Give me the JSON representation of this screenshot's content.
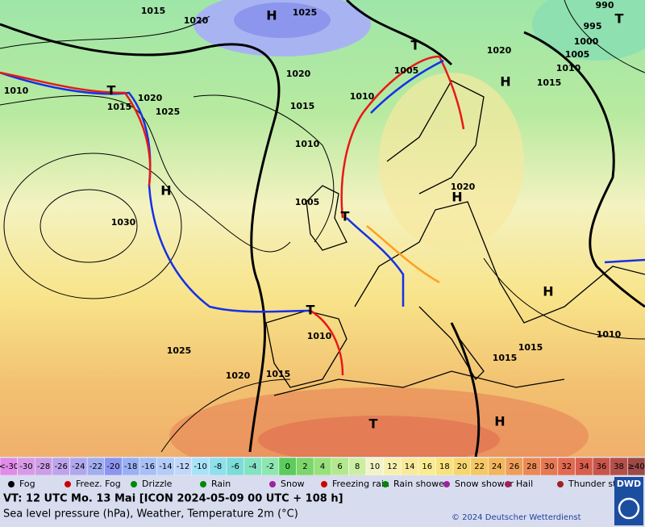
{
  "map": {
    "isobar_labels": [
      "1015",
      "1020",
      "1025",
      "1020",
      "1015",
      "1010",
      "1005",
      "1020",
      "1015",
      "1010",
      "1005",
      "1000",
      "995",
      "990",
      "1010",
      "1015",
      "1020",
      "1025",
      "1030",
      "1010",
      "1005",
      "1020",
      "1010",
      "1025",
      "1020",
      "1015",
      "1015",
      "1015",
      "1010"
    ],
    "pressure_centers": [
      "H",
      "T",
      "H",
      "T",
      "T",
      "H",
      "H",
      "T",
      "T",
      "H",
      "H",
      "T"
    ]
  },
  "color_scale": {
    "labels": [
      "<-30",
      "-30",
      "-28",
      "-26",
      "-24",
      "-22",
      "-20",
      "-18",
      "-16",
      "-14",
      "-12",
      "-10",
      "-8",
      "-6",
      "-4",
      "-2",
      "0",
      "2",
      "4",
      "6",
      "8",
      "10",
      "12",
      "14",
      "16",
      "18",
      "20",
      "22",
      "24",
      "26",
      "28",
      "30",
      "32",
      "34",
      "36",
      "38",
      "≥40"
    ],
    "colors": [
      "#e08ce8",
      "#d89ae8",
      "#cc9ee8",
      "#bea4ec",
      "#b0a8ee",
      "#a2aef0",
      "#8c96f0",
      "#9ab0f4",
      "#a8c0f6",
      "#b4ccf8",
      "#c2d8fa",
      "#a8e2f6",
      "#8ee0ec",
      "#7cdcd8",
      "#86e2c4",
      "#8ee6b0",
      "#5ccc5c",
      "#7cd66c",
      "#98e07c",
      "#b4e88e",
      "#cceea4",
      "#f2f4c8",
      "#f6f0b0",
      "#f8ea9c",
      "#faec90",
      "#f8e27e",
      "#f6d670",
      "#f4c864",
      "#f2b65c",
      "#ee9e58",
      "#ea8a56",
      "#e67852",
      "#e26a50",
      "#d85e4e",
      "#c8564c",
      "#b4504a",
      "#9c4a48"
    ]
  },
  "legend": [
    "Fog",
    "Freez. Fog",
    "Drizzle",
    "Rain",
    "Snow",
    "Freezing rain",
    "Rain shower",
    "Snow shower",
    "Hail",
    "Thunder storm"
  ],
  "footer": {
    "valid_time": "VT: 12 UTC Mo.  13 Mai [ICON 2024-05-09  00 UTC + 108 h]",
    "description": "Sea level pressure (hPa), Weather, Temperature 2m (°C)",
    "copyright": "© 2024 Deutscher Wetterdienst",
    "logo": "DWD"
  }
}
